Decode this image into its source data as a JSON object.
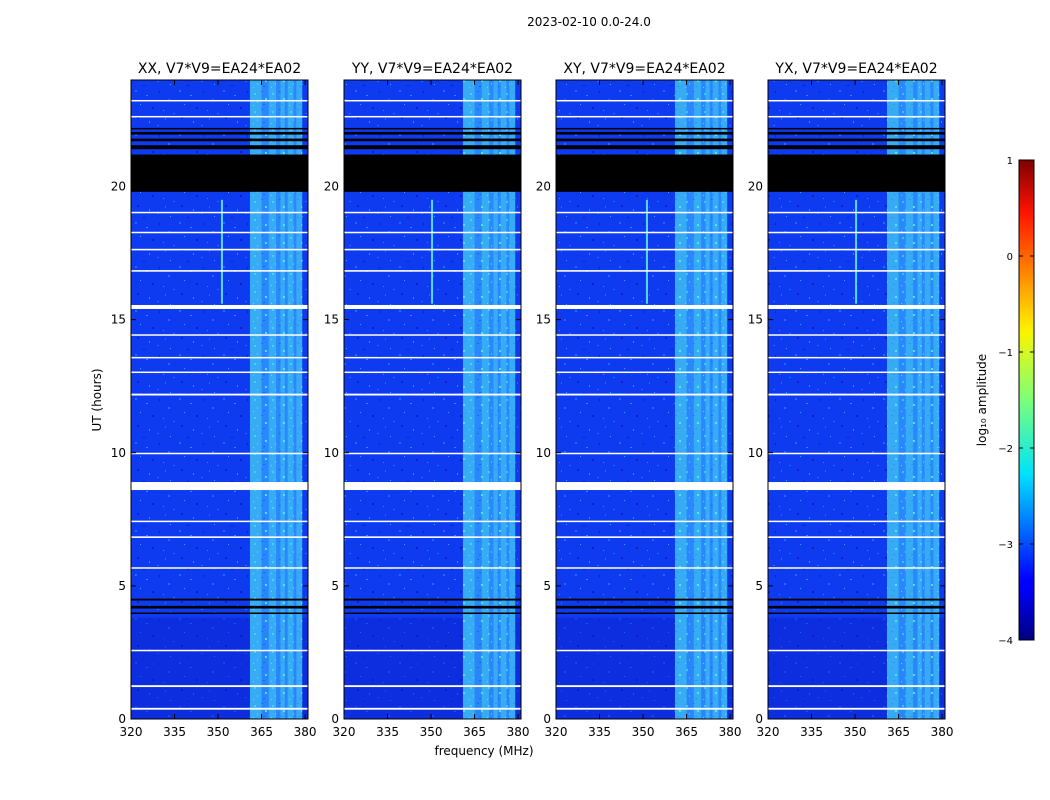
{
  "chart_data": {
    "type": "heatmap",
    "suptitle": "2023-02-10 0.0-24.0",
    "xlabel": "frequency (MHz)",
    "ylabel": "UT (hours)",
    "xlim": [
      320,
      381
    ],
    "ylim": [
      0,
      24
    ],
    "xticks": [
      "320",
      "335",
      "350",
      "365",
      "380"
    ],
    "yticks": [
      "0",
      "5",
      "10",
      "15",
      "20"
    ],
    "xtick_values": [
      320,
      335,
      350,
      365,
      380
    ],
    "ytick_values": [
      0,
      5,
      10,
      15,
      20
    ],
    "panels": [
      {
        "title": "XX, V7*V9=EA24*EA02",
        "spike_freq": 351
      },
      {
        "title": "YY, V7*V9=EA24*EA02",
        "spike_freq": 350
      },
      {
        "title": "XY, V7*V9=EA24*EA02",
        "spike_freq": 351
      },
      {
        "title": "YX, V7*V9=EA24*EA02",
        "spike_freq": 350
      }
    ],
    "rfi_band_mhz": [
      361,
      379
    ],
    "rfi_subbands_mhz": [
      [
        361,
        365
      ],
      [
        367.5,
        370
      ],
      [
        371.5,
        373
      ],
      [
        374,
        376
      ],
      [
        377,
        379
      ]
    ],
    "spike_hours": [
      15.6,
      19.5
    ],
    "flagged_black_hours": [
      [
        19.8,
        21.2
      ],
      [
        21.4,
        21.55
      ],
      [
        21.7,
        21.8
      ],
      [
        21.95,
        22.05
      ],
      [
        22.15,
        22.2
      ],
      [
        4.15,
        4.25
      ],
      [
        4.45,
        4.52
      ],
      [
        3.95,
        4.0
      ]
    ],
    "flagged_white_hours": [
      [
        8.6,
        8.9
      ],
      [
        15.4,
        15.55
      ],
      [
        0.35,
        0.42
      ],
      [
        1.2,
        1.27
      ],
      [
        2.55,
        2.6
      ],
      [
        5.65,
        5.7
      ],
      [
        6.8,
        6.86
      ],
      [
        7.4,
        7.45
      ],
      [
        9.95,
        10.0
      ],
      [
        12.15,
        12.22
      ],
      [
        13.0,
        13.05
      ],
      [
        13.55,
        13.6
      ],
      [
        14.4,
        14.45
      ],
      [
        16.8,
        16.86
      ],
      [
        17.6,
        17.66
      ],
      [
        18.25,
        18.3
      ],
      [
        19.0,
        19.05
      ],
      [
        22.6,
        22.65
      ],
      [
        23.2,
        23.25
      ]
    ],
    "colorbar": {
      "label": "log₁₀ amplitude",
      "range": [
        -4,
        1
      ],
      "ticks": [
        "1",
        "0",
        "−1",
        "−2",
        "−3",
        "−4"
      ],
      "tick_values": [
        1,
        0,
        -1,
        -2,
        -3,
        -4
      ],
      "colormap": "jet"
    }
  }
}
